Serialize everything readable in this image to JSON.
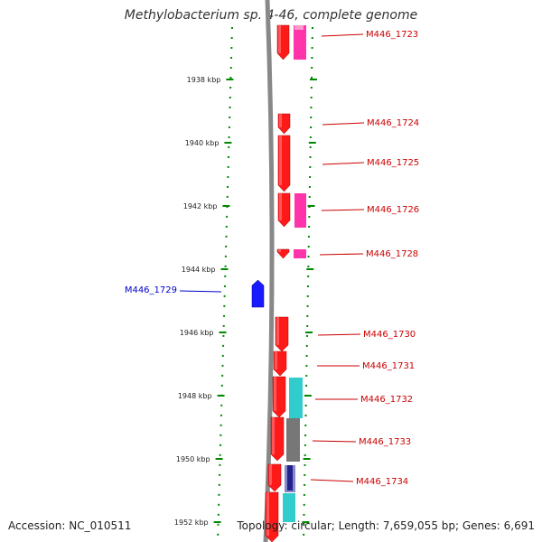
{
  "title": "Methylobacterium sp. 4-46, complete genome",
  "accession": "Accession: NC_010511",
  "summary": "Topology: circular; Length: 7,659,055 bp; Genes: 6,691",
  "colors": {
    "forward_gene": "#ff1a1a",
    "reverse_gene": "#1a1aff",
    "pink_feature": "#ff33aa",
    "cyan_feature": "#33cccc",
    "gray_feature": "#777777",
    "navy_feature": "#222288",
    "tick": "#008800",
    "label_red": "#cc0000",
    "label_blue": "#0000cc",
    "backbone": "#888888"
  },
  "ticks": [
    {
      "label": "1938 kbp"
    },
    {
      "label": "1940 kbp"
    },
    {
      "label": "1942 kbp"
    },
    {
      "label": "1944 kbp"
    },
    {
      "label": "1946 kbp"
    },
    {
      "label": "1948 kbp"
    },
    {
      "label": "1950 kbp"
    },
    {
      "label": "1952 kbp"
    }
  ],
  "genes": [
    {
      "label": "M446_1723",
      "strand": "+"
    },
    {
      "label": "M446_1724",
      "strand": "+"
    },
    {
      "label": "M446_1725",
      "strand": "+"
    },
    {
      "label": "M446_1726",
      "strand": "+"
    },
    {
      "label": "M446_1728",
      "strand": "+"
    },
    {
      "label": "M446_1729",
      "strand": "-"
    },
    {
      "label": "M446_1730",
      "strand": "+"
    },
    {
      "label": "M446_1731",
      "strand": "+"
    },
    {
      "label": "M446_1732",
      "strand": "+"
    },
    {
      "label": "M446_1733",
      "strand": "+"
    },
    {
      "label": "M446_1734",
      "strand": "+"
    }
  ]
}
